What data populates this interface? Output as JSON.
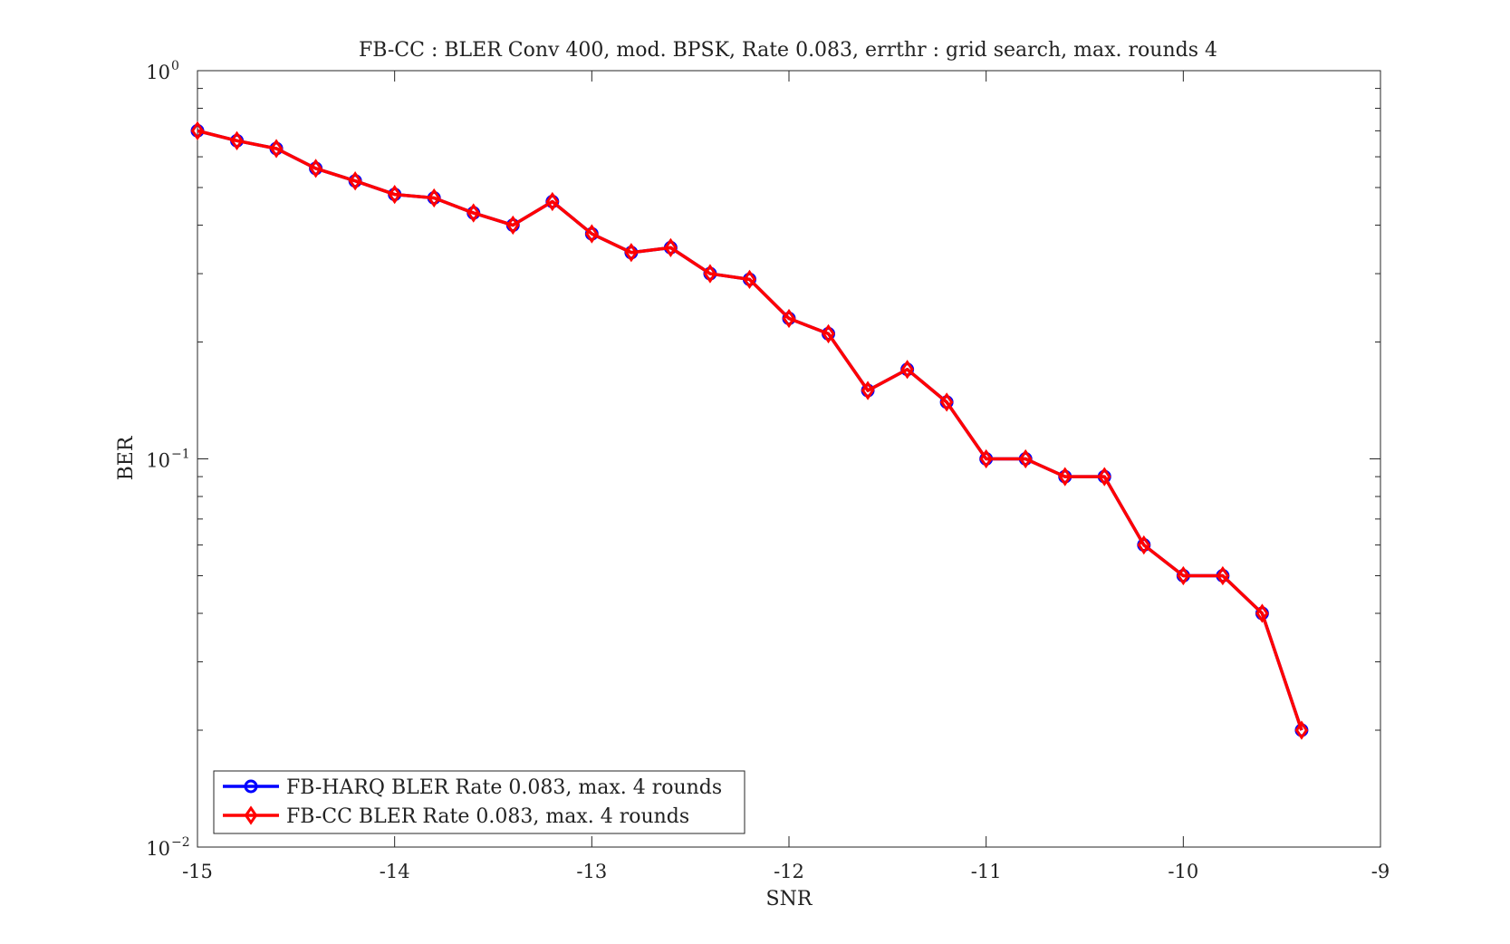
{
  "chart_data": {
    "type": "line",
    "title": "FB-CC : BLER Conv 400, mod. BPSK, Rate 0.083, errthr : grid search, max.  rounds 4",
    "xlabel": "SNR",
    "ylabel": "BER",
    "xlim": [
      -15,
      -9
    ],
    "ylim": [
      0.01,
      1
    ],
    "yscale": "log",
    "xticks": [
      -15,
      -14,
      -13,
      -12,
      -11,
      -10,
      -9
    ],
    "xtick_labels": [
      "-15",
      "-14",
      "-13",
      "-12",
      "-11",
      "-10",
      "-9"
    ],
    "yticks": [
      {
        "value": 1,
        "base": "10",
        "exp": "0"
      },
      {
        "value": 0.1,
        "base": "10",
        "exp": "−1"
      },
      {
        "value": 0.01,
        "base": "10",
        "exp": "−2"
      }
    ],
    "grid": false,
    "legend_position": "bottom-left",
    "x": [
      -15,
      -14.8,
      -14.6,
      -14.4,
      -14.2,
      -14,
      -13.8,
      -13.6,
      -13.4,
      -13.2,
      -13,
      -12.8,
      -12.6,
      -12.4,
      -12.2,
      -12,
      -11.8,
      -11.6,
      -11.4,
      -11.2,
      -11,
      -10.8,
      -10.6,
      -10.4,
      -10.2,
      -10,
      -9.8,
      -9.6,
      -9.4
    ],
    "series": [
      {
        "name": "FB-HARQ BLER Rate 0.083, max.  4 rounds",
        "color": "#0000ff",
        "marker": "circle",
        "values": [
          0.7,
          0.66,
          0.63,
          0.56,
          0.52,
          0.48,
          0.47,
          0.43,
          0.4,
          0.46,
          0.38,
          0.34,
          0.35,
          0.3,
          0.29,
          0.23,
          0.21,
          0.15,
          0.17,
          0.14,
          0.1,
          0.1,
          0.09,
          0.09,
          0.06,
          0.05,
          0.05,
          0.04,
          0.02
        ]
      },
      {
        "name": "FB-CC BLER Rate 0.083, max.  4 rounds",
        "color": "#ff0000",
        "marker": "diamond",
        "values": [
          0.7,
          0.66,
          0.63,
          0.56,
          0.52,
          0.48,
          0.47,
          0.43,
          0.4,
          0.46,
          0.38,
          0.34,
          0.35,
          0.3,
          0.29,
          0.23,
          0.21,
          0.15,
          0.17,
          0.14,
          0.1,
          0.1,
          0.09,
          0.09,
          0.06,
          0.05,
          0.05,
          0.04,
          0.02
        ]
      }
    ]
  }
}
